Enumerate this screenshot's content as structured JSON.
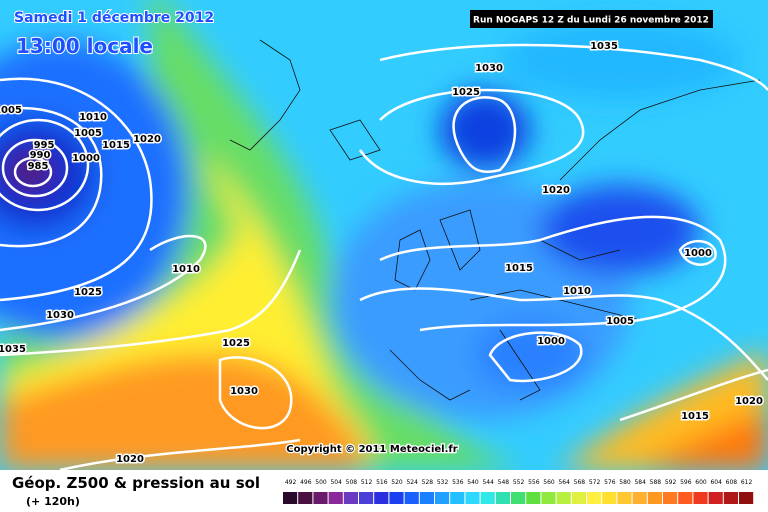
{
  "header": {
    "date": "Samedi 1 décembre 2012",
    "time": "13:00 locale",
    "run": "Run NOGAPS 12 Z du Lundi 26 novembre 2012"
  },
  "isobar_labels": [
    1005,
    1010,
    1005,
    1015,
    1020,
    995,
    990,
    985,
    1000,
    1010,
    1025,
    1030,
    1035,
    1025,
    1030,
    1020,
    1035,
    1030,
    1025,
    1020,
    1000,
    1015,
    1010,
    1005,
    1000,
    1020,
    1015
  ],
  "copyright": "Copyright © 2011 Meteociel.fr",
  "footer": {
    "title": "Géop. Z500 & pression au sol",
    "subtitle": "(+ 120h)"
  },
  "legend": {
    "ticks": [
      492,
      496,
      500,
      504,
      508,
      512,
      516,
      520,
      524,
      528,
      532,
      536,
      540,
      544,
      548,
      552,
      556,
      560,
      564,
      568,
      572,
      576,
      580,
      584,
      588,
      592,
      596,
      600,
      604,
      608,
      612
    ]
  }
}
